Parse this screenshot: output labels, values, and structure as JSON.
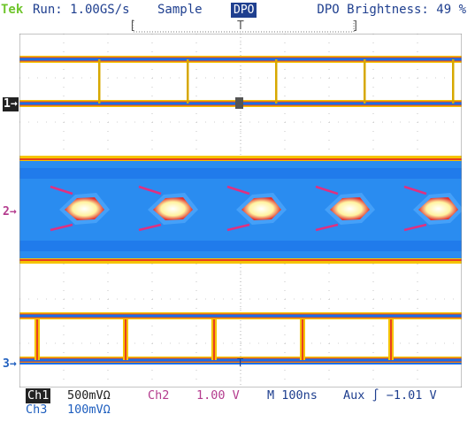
{
  "header": {
    "brand": "Tek",
    "run_status": "Run: 1.00GS/s",
    "acq_mode": "Sample",
    "display_mode": "DPO",
    "brightness": "DPO Brightness: 49 %"
  },
  "markers": {
    "ch1": "1→",
    "ch2": "2→",
    "ch3": "3→"
  },
  "readout": {
    "ch1_label": "Ch1",
    "ch1_scale": "500mVΩ",
    "ch2_label": "Ch2",
    "ch2_scale": "1.00 V",
    "timebase": "M  100ns",
    "trigger": "Aux ∫   −1.01 V",
    "ch3_label": "Ch3",
    "ch3_scale": "100mVΩ"
  },
  "colors": {
    "ch1": "#222222",
    "ch2": "#b43c8e",
    "ch3": "#1f5fbf",
    "text": "#1f3f8f",
    "brand": "#6fc52c",
    "grid": "#a0a0a0"
  }
}
